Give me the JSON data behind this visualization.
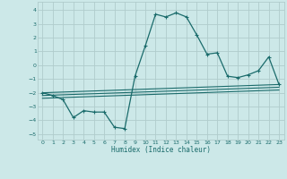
{
  "xlabel": "Humidex (Indice chaleur)",
  "bg_color": "#cce8e8",
  "grid_color": "#b0cccc",
  "line_color": "#1a6b6b",
  "xlim": [
    -0.5,
    23.5
  ],
  "ylim": [
    -5.4,
    4.6
  ],
  "xticks": [
    0,
    1,
    2,
    3,
    4,
    5,
    6,
    7,
    8,
    9,
    10,
    11,
    12,
    13,
    14,
    15,
    16,
    17,
    18,
    19,
    20,
    21,
    22,
    23
  ],
  "yticks": [
    -5,
    -4,
    -3,
    -2,
    -1,
    0,
    1,
    2,
    3,
    4
  ],
  "main_x": [
    0,
    1,
    2,
    3,
    4,
    5,
    6,
    7,
    8,
    9,
    10,
    11,
    12,
    13,
    14,
    15,
    16,
    17,
    18,
    19,
    20,
    21,
    22,
    23
  ],
  "main_y": [
    -2.0,
    -2.2,
    -2.5,
    -3.8,
    -3.3,
    -3.4,
    -3.4,
    -4.5,
    -4.6,
    -0.8,
    1.4,
    3.7,
    3.5,
    3.8,
    3.5,
    2.2,
    0.8,
    0.9,
    -0.8,
    -0.9,
    -0.7,
    -0.4,
    0.6,
    -1.4
  ],
  "line1_x": [
    0,
    23
  ],
  "line1_y": [
    -2.0,
    -1.4
  ],
  "line2_x": [
    0,
    23
  ],
  "line2_y": [
    -2.2,
    -1.6
  ],
  "line3_x": [
    0,
    23
  ],
  "line3_y": [
    -2.4,
    -1.8
  ]
}
